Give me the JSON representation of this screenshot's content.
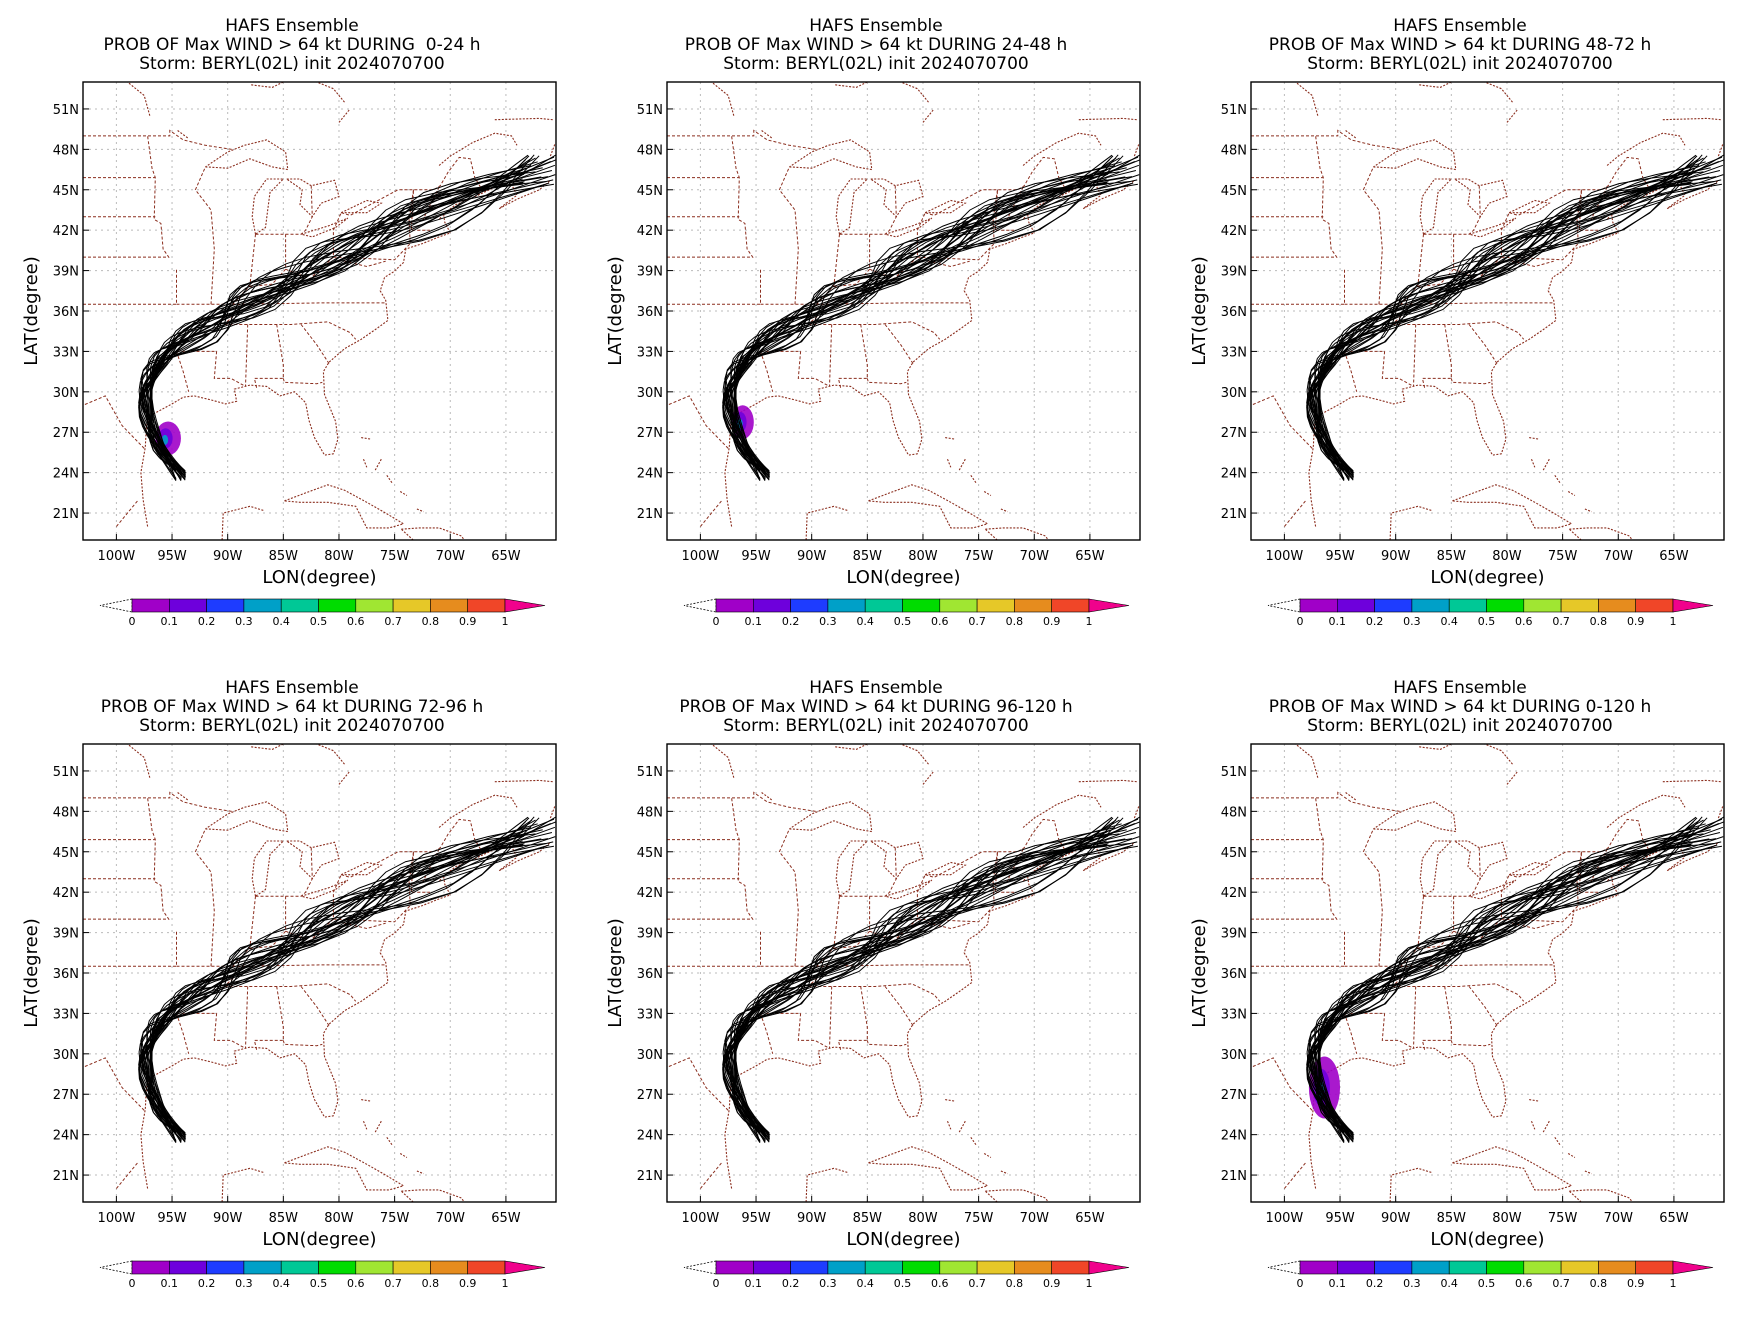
{
  "panels": [
    {
      "title": "HAFS Ensemble",
      "subtitle": "PROB OF Max WIND > 64 kt DURING  0-24 h",
      "storm": "Storm: BERYL(02L) init 2024070700"
    },
    {
      "title": "HAFS Ensemble",
      "subtitle": "PROB OF Max WIND > 64 kt DURING 24-48 h",
      "storm": "Storm: BERYL(02L) init 2024070700"
    },
    {
      "title": "HAFS Ensemble",
      "subtitle": "PROB OF Max WIND > 64 kt DURING 48-72 h",
      "storm": "Storm: BERYL(02L) init 2024070700"
    },
    {
      "title": "HAFS Ensemble",
      "subtitle": "PROB OF Max WIND > 64 kt DURING 72-96 h",
      "storm": "Storm: BERYL(02L) init 2024070700"
    },
    {
      "title": "HAFS Ensemble",
      "subtitle": "PROB OF Max WIND > 64 kt DURING 96-120 h",
      "storm": "Storm: BERYL(02L) init 2024070700"
    },
    {
      "title": "HAFS Ensemble",
      "subtitle": "PROB OF Max WIND > 64 kt DURING 0-120 h",
      "storm": "Storm: BERYL(02L) init 2024070700"
    }
  ],
  "map": {
    "xlabel": "LON(degree)",
    "ylabel": "LAT(degree)",
    "lon_range": [
      -103,
      -60.5
    ],
    "lat_range": [
      19,
      53
    ],
    "lon_ticks": [
      "100W",
      "95W",
      "90W",
      "85W",
      "80W",
      "75W",
      "70W",
      "65W"
    ],
    "lon_tick_values": [
      -100,
      -95,
      -90,
      -85,
      -80,
      -75,
      -70,
      -65
    ],
    "lat_ticks": [
      "51N",
      "48N",
      "45N",
      "42N",
      "39N",
      "36N",
      "33N",
      "30N",
      "27N",
      "24N",
      "21N"
    ],
    "lat_tick_values": [
      51,
      48,
      45,
      42,
      39,
      36,
      33,
      30,
      27,
      24,
      21
    ]
  },
  "colorbar": {
    "labels": [
      "0",
      "0.1",
      "0.2",
      "0.3",
      "0.4",
      "0.5",
      "0.6",
      "0.7",
      "0.8",
      "0.9",
      "1"
    ],
    "colors": [
      "#a000c8",
      "#6e00dc",
      "#1e3cff",
      "#00a0c8",
      "#00c896",
      "#00dc00",
      "#a0e632",
      "#e6c828",
      "#e68c1e",
      "#f04628",
      "#f0028c"
    ]
  },
  "colors": {
    "coastline": "#8b2e1e",
    "grid": "#bbbbbb",
    "track": "#000000"
  },
  "probability_swaths": [
    {
      "panel": 0,
      "lon_min": -96.5,
      "lon_max": -94.2,
      "lat_min": 25.3,
      "lat_max": 27.8
    },
    {
      "panel": 1,
      "lon_min": -97.2,
      "lon_max": -95.2,
      "lat_min": 26.5,
      "lat_max": 29.0
    },
    {
      "panel": 5,
      "lon_min": -97.8,
      "lon_max": -95.0,
      "lat_min": 25.2,
      "lat_max": 29.8
    }
  ]
}
